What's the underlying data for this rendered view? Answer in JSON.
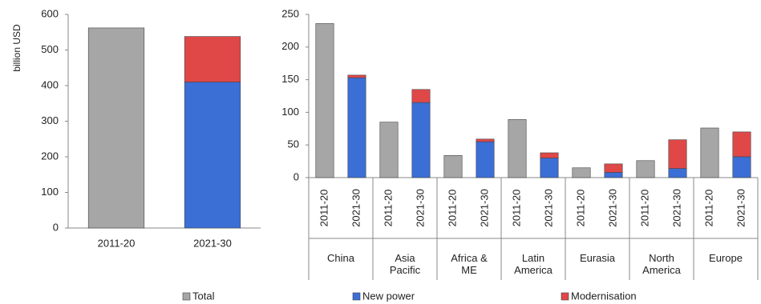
{
  "legend": {
    "names": [
      "Total",
      "New power",
      "Modernisation"
    ],
    "colors": [
      "#a6a6a6",
      "#3b6fd6",
      "#e04848"
    ]
  },
  "chart_data": [
    {
      "type": "bar",
      "stacked": true,
      "ylabel": "billion USD",
      "categories": [
        "2011-20",
        "2021-30"
      ],
      "series": [
        {
          "values": [
            562,
            null
          ]
        },
        {
          "values": [
            null,
            410
          ]
        },
        {
          "values": [
            null,
            128
          ]
        }
      ],
      "ylim": [
        0,
        600
      ],
      "yticks": [
        0,
        100,
        200,
        300,
        400,
        500,
        600
      ]
    },
    {
      "type": "bar",
      "stacked": true,
      "groups": [
        "China",
        "Asia Pacific",
        "Africa & ME",
        "Latin America",
        "Eurasia",
        "North America",
        "Europe"
      ],
      "categories": [
        "2011-20",
        "2021-30",
        "2011-20",
        "2021-30",
        "2011-20",
        "2021-30",
        "2011-20",
        "2021-30",
        "2011-20",
        "2021-30",
        "2011-20",
        "2021-30",
        "2011-20",
        "2021-30"
      ],
      "series": [
        {
          "values": [
            236,
            null,
            85,
            null,
            34,
            null,
            89,
            null,
            15,
            null,
            26,
            null,
            76,
            null
          ]
        },
        {
          "values": [
            null,
            153,
            null,
            115,
            null,
            55,
            null,
            30,
            null,
            8,
            null,
            14,
            null,
            32
          ]
        },
        {
          "values": [
            null,
            4,
            null,
            20,
            null,
            4,
            null,
            8,
            null,
            13,
            null,
            44,
            null,
            38
          ]
        }
      ],
      "ylim": [
        0,
        250
      ],
      "yticks": [
        0,
        50,
        100,
        150,
        200,
        250
      ]
    }
  ]
}
